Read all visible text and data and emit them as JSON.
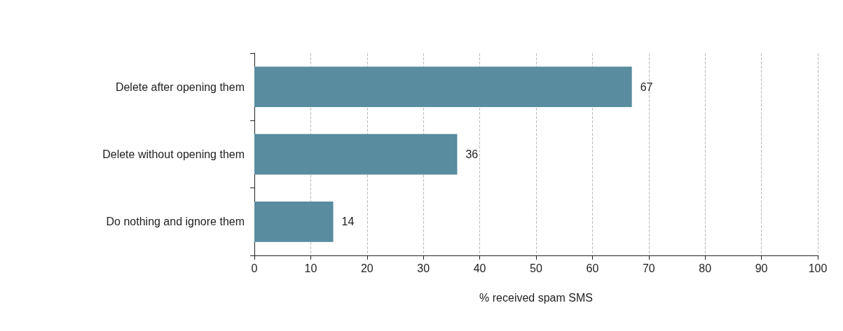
{
  "chart_data": {
    "type": "bar",
    "orientation": "horizontal",
    "xlabel": "% received spam SMS",
    "categories": [
      "Delete after opening them",
      "Delete without opening them",
      "Do nothing and ignore them"
    ],
    "values": [
      67,
      36,
      14
    ],
    "color": "#588c9e",
    "xlim": [
      0,
      100
    ],
    "xticks": [
      0,
      10,
      20,
      30,
      40,
      50,
      60,
      70,
      80,
      90,
      100
    ],
    "grid": "x",
    "data_labels": true
  }
}
